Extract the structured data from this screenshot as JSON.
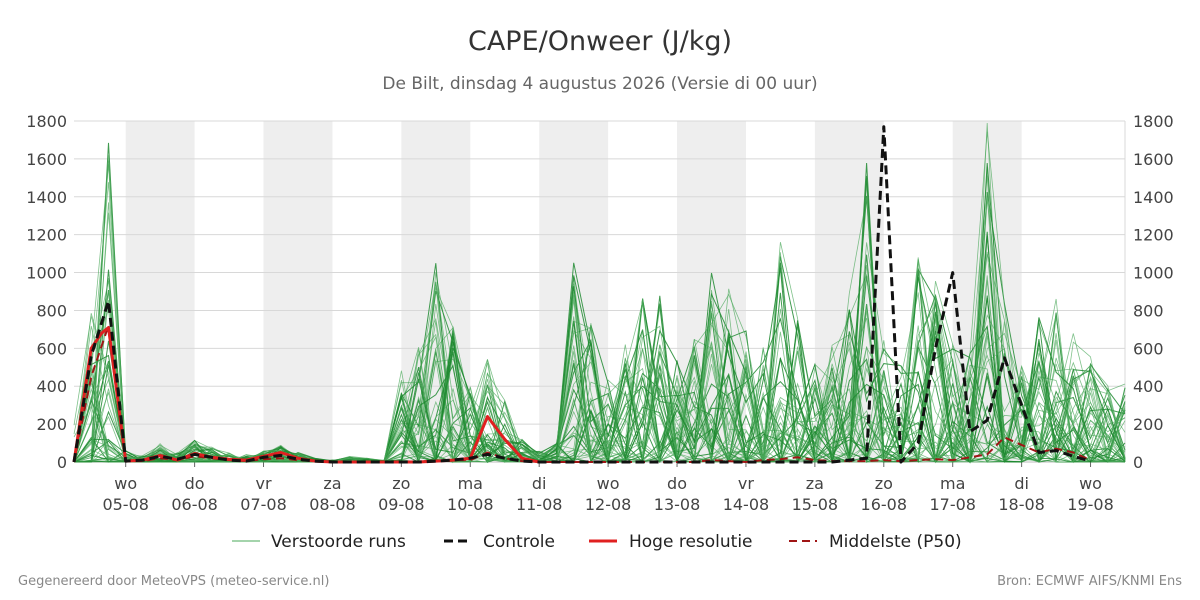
{
  "chart_data": {
    "type": "line",
    "title": "CAPE/Onweer (J/kg)",
    "subtitle": "De Bilt, dinsdag  4 augustus 2026 (Versie di 00 uur)",
    "ylim": [
      0,
      1800
    ],
    "yticks": [
      0,
      200,
      400,
      600,
      800,
      1000,
      1200,
      1400,
      1600,
      1800
    ],
    "xlim": [
      0,
      15.25
    ],
    "x_unit_note": "",
    "xticks": [
      {
        "x": 0.75,
        "day": "wo",
        "date": "05-08"
      },
      {
        "x": 1.75,
        "day": "do",
        "date": "06-08"
      },
      {
        "x": 2.75,
        "day": "vr",
        "date": "07-08"
      },
      {
        "x": 3.75,
        "day": "za",
        "date": "08-08"
      },
      {
        "x": 4.75,
        "day": "zo",
        "date": "09-08"
      },
      {
        "x": 5.75,
        "day": "ma",
        "date": "10-08"
      },
      {
        "x": 6.75,
        "day": "di",
        "date": "11-08"
      },
      {
        "x": 7.75,
        "day": "wo",
        "date": "12-08"
      },
      {
        "x": 8.75,
        "day": "do",
        "date": "13-08"
      },
      {
        "x": 9.75,
        "day": "vr",
        "date": "14-08"
      },
      {
        "x": 10.75,
        "day": "za",
        "date": "15-08"
      },
      {
        "x": 11.75,
        "day": "zo",
        "date": "16-08"
      },
      {
        "x": 12.75,
        "day": "ma",
        "date": "17-08"
      },
      {
        "x": 13.75,
        "day": "di",
        "date": "18-08"
      },
      {
        "x": 14.75,
        "day": "wo",
        "date": "19-08"
      }
    ],
    "shaded_bands": [
      [
        0.75,
        1.75
      ],
      [
        2.75,
        3.75
      ],
      [
        4.75,
        5.75
      ],
      [
        6.75,
        7.75
      ],
      [
        8.75,
        9.75
      ],
      [
        10.75,
        11.75
      ],
      [
        12.75,
        13.75
      ]
    ],
    "grid": true,
    "legend_position": "bottom",
    "series": [
      {
        "name": "Controle",
        "style": "dashed",
        "color": "#111111",
        "x": [
          0.0,
          0.25,
          0.5,
          0.75,
          1.0,
          1.25,
          1.5,
          1.75,
          2.0,
          2.25,
          2.5,
          2.75,
          3.0,
          3.25,
          3.5,
          3.75,
          4.0,
          4.25,
          4.5,
          4.75,
          5.0,
          5.25,
          5.5,
          5.75,
          6.0,
          6.25,
          6.5,
          6.75,
          7.0,
          7.25,
          7.5,
          7.75,
          8.0,
          8.25,
          8.5,
          8.75,
          9.0,
          9.25,
          9.5,
          9.75,
          10.0,
          10.25,
          10.5,
          10.75,
          11.0,
          11.25,
          11.5,
          11.75,
          12.0,
          12.25,
          12.5,
          12.75,
          13.0,
          13.25,
          13.5,
          13.75,
          14.0,
          14.25,
          14.5,
          14.75
        ],
        "values": [
          0,
          560,
          850,
          5,
          10,
          30,
          15,
          40,
          25,
          10,
          5,
          25,
          35,
          15,
          5,
          0,
          0,
          0,
          0,
          0,
          0,
          5,
          10,
          20,
          40,
          20,
          5,
          0,
          0,
          0,
          0,
          0,
          0,
          0,
          0,
          0,
          0,
          0,
          0,
          0,
          0,
          0,
          0,
          0,
          0,
          10,
          20,
          1770,
          0,
          100,
          600,
          1000,
          160,
          220,
          550,
          300,
          50,
          60,
          30,
          5
        ]
      },
      {
        "name": "Hoge resolutie",
        "style": "solid",
        "color": "#e02020",
        "x": [
          0.0,
          0.25,
          0.4,
          0.5,
          0.75,
          1.0,
          1.25,
          1.5,
          1.75,
          2.0,
          2.25,
          2.5,
          2.75,
          3.0,
          3.25,
          3.5,
          3.75,
          4.0,
          4.25,
          4.5,
          4.75,
          5.0,
          5.25,
          5.5,
          5.75,
          6.0,
          6.25,
          6.5,
          6.75
        ],
        "values": [
          0,
          600,
          680,
          710,
          5,
          10,
          35,
          10,
          45,
          25,
          15,
          10,
          30,
          50,
          20,
          5,
          0,
          0,
          0,
          0,
          0,
          0,
          5,
          10,
          20,
          240,
          120,
          20,
          0
        ]
      },
      {
        "name": "Middelste (P50)",
        "style": "dashed",
        "color": "#a01515",
        "x": [
          0.0,
          0.25,
          0.5,
          0.75,
          1.0,
          1.25,
          1.5,
          1.75,
          2.0,
          2.25,
          2.5,
          2.75,
          3.0,
          3.25,
          3.5,
          3.75,
          4.0,
          4.25,
          4.5,
          4.75,
          5.0,
          5.25,
          5.5,
          5.75,
          6.0,
          6.25,
          6.5,
          6.75,
          7.0,
          7.25,
          7.5,
          7.75,
          8.0,
          8.25,
          8.5,
          8.75,
          9.0,
          9.25,
          9.5,
          9.75,
          10.0,
          10.25,
          10.5,
          10.75,
          11.0,
          11.25,
          11.5,
          11.75,
          12.0,
          12.25,
          12.5,
          12.75,
          13.0,
          13.25,
          13.5,
          13.75,
          14.0,
          14.25,
          14.5,
          14.75
        ],
        "values": [
          0,
          450,
          720,
          5,
          5,
          20,
          10,
          30,
          20,
          10,
          5,
          15,
          20,
          10,
          5,
          0,
          0,
          0,
          0,
          0,
          0,
          5,
          10,
          10,
          50,
          20,
          5,
          0,
          0,
          0,
          0,
          0,
          0,
          0,
          0,
          0,
          0,
          10,
          5,
          0,
          10,
          15,
          25,
          10,
          5,
          5,
          5,
          10,
          5,
          10,
          15,
          10,
          25,
          40,
          130,
          90,
          50,
          70,
          50,
          10
        ]
      }
    ],
    "ensemble": {
      "name": "Verstoorde runs",
      "color": "#2a9a3a",
      "count": 50,
      "x": [
        0.0,
        0.25,
        0.5,
        0.75,
        1.0,
        1.25,
        1.5,
        1.75,
        2.0,
        2.25,
        2.5,
        2.75,
        3.0,
        3.25,
        3.5,
        3.75,
        4.0,
        4.25,
        4.5,
        4.75,
        5.0,
        5.25,
        5.5,
        5.75,
        6.0,
        6.25,
        6.5,
        6.75,
        7.0,
        7.25,
        7.5,
        7.75,
        8.0,
        8.25,
        8.5,
        8.75,
        9.0,
        9.25,
        9.5,
        9.75,
        10.0,
        10.25,
        10.5,
        10.75,
        11.0,
        11.25,
        11.5,
        11.75,
        12.0,
        12.25,
        12.5,
        12.75,
        13.0,
        13.25,
        13.5,
        13.75,
        14.0,
        14.25,
        14.5,
        14.75,
        15.0,
        15.25
      ],
      "envelope_max": [
        200,
        820,
        1700,
        60,
        40,
        100,
        50,
        120,
        80,
        50,
        40,
        60,
        90,
        50,
        20,
        10,
        30,
        20,
        10,
        520,
        660,
        1060,
        720,
        400,
        570,
        350,
        130,
        60,
        100,
        1060,
        750,
        480,
        620,
        1030,
        890,
        540,
        740,
        1010,
        930,
        700,
        610,
        1200,
        770,
        540,
        620,
        900,
        1600,
        660,
        520,
        1110,
        1000,
        740,
        600,
        1800,
        860,
        540,
        800,
        880,
        680,
        600,
        480,
        420
      ]
    }
  },
  "legend": {
    "ensemble": "Verstoorde runs",
    "control": "Controle",
    "hires": "Hoge resolutie",
    "p50": "Middelste (P50)"
  },
  "footer": {
    "left": "Gegenereerd door MeteoVPS (meteo-service.nl)",
    "right": "Bron: ECMWF AIFS/KNMI Ens"
  }
}
